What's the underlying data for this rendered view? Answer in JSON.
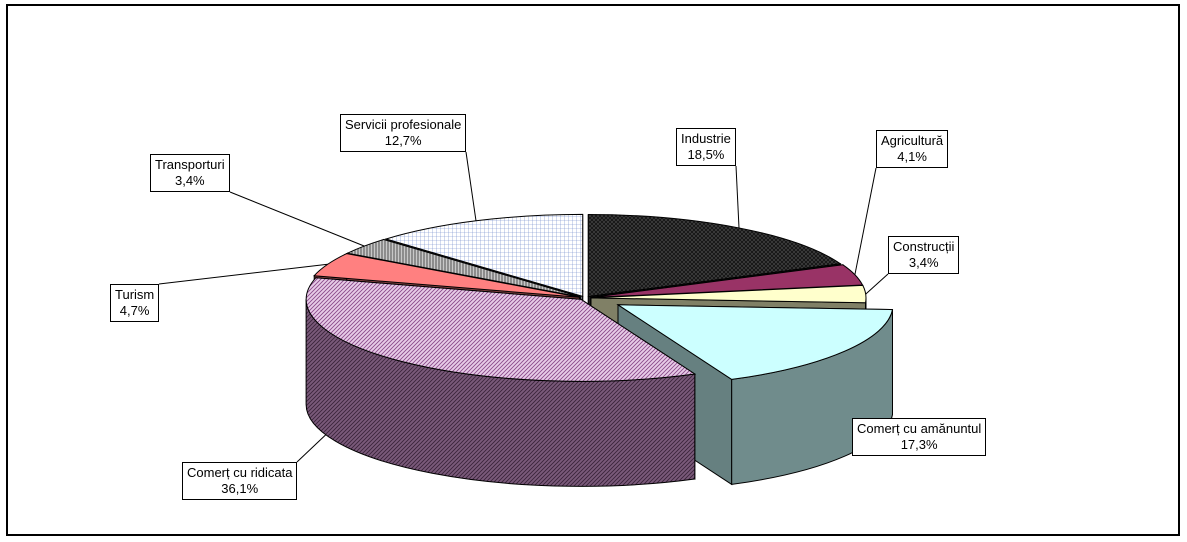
{
  "chart_data": {
    "type": "pie",
    "title": "",
    "unit": "%",
    "slices": [
      {
        "label": "Industrie",
        "value": 18.5,
        "value_text": "18,5%",
        "color": "#404040",
        "pattern": "crosshatch"
      },
      {
        "label": "Agricultură",
        "value": 4.1,
        "value_text": "4,1%",
        "color": "#993366",
        "pattern": "solid"
      },
      {
        "label": "Construcții",
        "value": 3.4,
        "value_text": "3,4%",
        "color": "#FFFFCC",
        "pattern": "solid"
      },
      {
        "label": "Comerț cu amănuntul",
        "value": 17.3,
        "value_text": "17,3%",
        "color": "#CCFFFF",
        "pattern": "solid",
        "exploded": true
      },
      {
        "label": "Comerț cu ridicata",
        "value": 36.1,
        "value_text": "36,1%",
        "color": "#CC99CC",
        "pattern": "diagonal"
      },
      {
        "label": "Turism",
        "value": 4.7,
        "value_text": "4,7%",
        "color": "#FF8080",
        "pattern": "solid"
      },
      {
        "label": "Transporturi",
        "value": 3.4,
        "value_text": "3,4%",
        "color": "#A0A0A0",
        "pattern": "vertical"
      },
      {
        "label": "Servicii profesionale",
        "value": 12.7,
        "value_text": "12,7%",
        "color": "#E8F0FF",
        "pattern": "grid"
      }
    ]
  }
}
